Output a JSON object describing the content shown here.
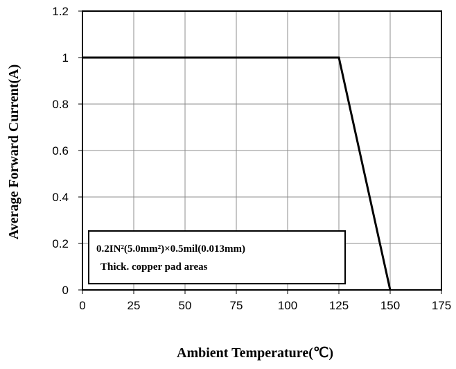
{
  "chart_data": {
    "type": "line",
    "xlabel": "Ambient Temperature(℃)",
    "ylabel": "Average Forward Current(A)",
    "xlim": [
      0,
      175
    ],
    "ylim": [
      0,
      1.2
    ],
    "x_ticks": [
      "0",
      "25",
      "50",
      "75",
      "100",
      "125",
      "150",
      "175"
    ],
    "y_ticks": [
      "0",
      "0.2",
      "0.4",
      "0.6",
      "0.8",
      "1",
      "1.2"
    ],
    "grid": true,
    "series": [
      {
        "x": [
          0,
          125,
          150
        ],
        "y": [
          1,
          1,
          0
        ],
        "color": "#000000"
      }
    ],
    "annotation": {
      "line1": "0.2IN²(5.0mm²)×0.5mil(0.013mm)",
      "line2": "Thick. copper pad areas"
    }
  }
}
